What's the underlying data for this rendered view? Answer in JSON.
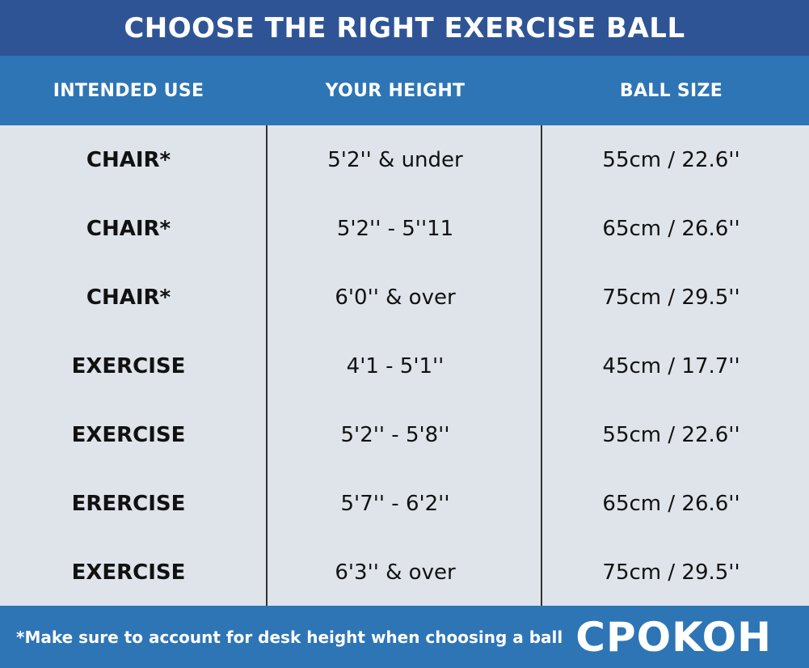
{
  "title": "CHOOSE THE RIGHT EXERCISE BALL",
  "columns": {
    "intended_use": "INTENDED USE",
    "your_height": "YOUR HEIGHT",
    "ball_size": "BALL SIZE"
  },
  "rows": [
    {
      "use": "CHAIR*",
      "height": "5'2'' & under",
      "size": "55cm / 22.6''"
    },
    {
      "use": "CHAIR*",
      "height": "5'2'' - 5''11",
      "size": "65cm / 26.6''"
    },
    {
      "use": "CHAIR*",
      "height": "6'0'' & over",
      "size": "75cm / 29.5''"
    },
    {
      "use": "EXERCISE",
      "height": "4'1 - 5'1''",
      "size": "45cm / 17.7''"
    },
    {
      "use": "EXERCISE",
      "height": "5'2'' - 5'8''",
      "size": "55cm / 22.6''"
    },
    {
      "use": "ERERCISE",
      "height": "5'7'' - 6'2''",
      "size": "65cm / 26.6''"
    },
    {
      "use": "EXERCISE",
      "height": "6'3'' & over",
      "size": "75cm / 29.5''"
    }
  ],
  "footer": {
    "note": "*Make sure to account for desk height when choosing a ball",
    "brand": "CPOKOH"
  },
  "colors": {
    "title_bar": "#2f5496",
    "header_bar": "#2e75b6",
    "table_background": "#dfe3ea",
    "footer_bar": "#2e75b6",
    "header_text": "#ffffff"
  }
}
